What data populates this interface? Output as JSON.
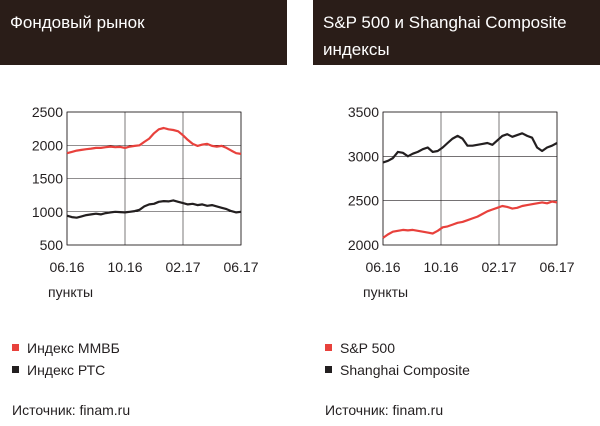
{
  "left_panel": {
    "title": "Фондовый рынок",
    "unit_label": "пункты",
    "legend": [
      {
        "label": "Индекс ММВБ",
        "color": "#e8413c"
      },
      {
        "label": "Индекс РТС",
        "color": "#231f20"
      }
    ],
    "source": "Источник: finam.ru"
  },
  "right_panel": {
    "title": "S&P 500 и Shanghai Composite индексы",
    "unit_label": "пункты",
    "legend": [
      {
        "label": "S&P 500",
        "color": "#e8413c"
      },
      {
        "label": "Shanghai Composite",
        "color": "#231f20"
      }
    ],
    "source": "Источник: finam.ru"
  },
  "chart_data": [
    {
      "type": "line",
      "x_tick_labels": [
        "06.16",
        "10.16",
        "02.17",
        "06.17"
      ],
      "y_ticks": [
        500,
        1000,
        1500,
        2000,
        2500
      ],
      "ylim": [
        500,
        2500
      ],
      "grid": true,
      "series": [
        {
          "name": "Индекс ММВБ",
          "color": "#e8413c",
          "values": [
            1880,
            1900,
            1920,
            1930,
            1940,
            1950,
            1960,
            1960,
            1970,
            1980,
            1970,
            1975,
            1960,
            1980,
            1990,
            2000,
            2050,
            2100,
            2180,
            2240,
            2260,
            2240,
            2230,
            2210,
            2150,
            2080,
            2020,
            1990,
            2010,
            2020,
            1990,
            1980,
            1990,
            1960,
            1920,
            1880,
            1870
          ]
        },
        {
          "name": "Индекс РТС",
          "color": "#231f20",
          "values": [
            940,
            920,
            910,
            930,
            950,
            960,
            970,
            960,
            980,
            990,
            1000,
            995,
            990,
            1000,
            1010,
            1030,
            1080,
            1110,
            1120,
            1150,
            1160,
            1155,
            1170,
            1150,
            1130,
            1110,
            1120,
            1100,
            1110,
            1090,
            1100,
            1080,
            1060,
            1040,
            1010,
            990,
            1000
          ]
        }
      ]
    },
    {
      "type": "line",
      "x_tick_labels": [
        "06.16",
        "10.16",
        "02.17",
        "06.17"
      ],
      "y_ticks": [
        2000,
        2500,
        3000,
        3500
      ],
      "ylim": [
        2000,
        3500
      ],
      "grid": true,
      "series": [
        {
          "name": "S&P 500",
          "color": "#e8413c",
          "values": [
            2080,
            2120,
            2150,
            2160,
            2170,
            2165,
            2170,
            2160,
            2150,
            2140,
            2130,
            2160,
            2200,
            2210,
            2230,
            2250,
            2260,
            2280,
            2300,
            2320,
            2350,
            2380,
            2400,
            2420,
            2440,
            2430,
            2410,
            2420,
            2440,
            2450,
            2460,
            2470,
            2480,
            2470,
            2490,
            2480
          ]
        },
        {
          "name": "Shanghai Composite",
          "color": "#231f20",
          "values": [
            2930,
            2950,
            2980,
            3050,
            3040,
            3000,
            3030,
            3050,
            3080,
            3100,
            3050,
            3060,
            3100,
            3150,
            3200,
            3230,
            3200,
            3120,
            3120,
            3130,
            3140,
            3150,
            3130,
            3180,
            3230,
            3250,
            3220,
            3240,
            3260,
            3230,
            3210,
            3100,
            3060,
            3100,
            3120,
            3150
          ]
        }
      ]
    }
  ]
}
